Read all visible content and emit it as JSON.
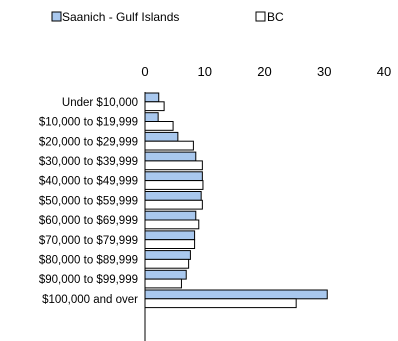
{
  "chart_data": {
    "type": "bar",
    "orientation": "horizontal",
    "categories": [
      "Under $10,000",
      "$10,000 to $19,999",
      "$20,000 to $29,999",
      "$30,000 to $39,999",
      "$40,000 to $49,999",
      "$50,000 to $59,999",
      "$60,000 to $69,999",
      "$70,000 to $79,999",
      "$80,000 to $89,999",
      "$90,000 to $99,999",
      "$100,000 and over"
    ],
    "series": [
      {
        "name": "Saanich - Gulf Islands",
        "color": "#a9c8ee",
        "values": [
          2.3,
          2.2,
          5.5,
          8.5,
          9.6,
          9.4,
          8.5,
          8.3,
          7.6,
          6.9,
          30.5
        ]
      },
      {
        "name": "BC",
        "color": "#ffffff",
        "values": [
          3.2,
          4.7,
          8.1,
          9.6,
          9.7,
          9.6,
          9.0,
          8.3,
          7.3,
          6.1,
          25.3
        ]
      }
    ],
    "x_ticks": [
      "0",
      "10",
      "20",
      "30",
      "40"
    ],
    "xlim": [
      0,
      40
    ],
    "legend_position": "top",
    "grid": false
  }
}
